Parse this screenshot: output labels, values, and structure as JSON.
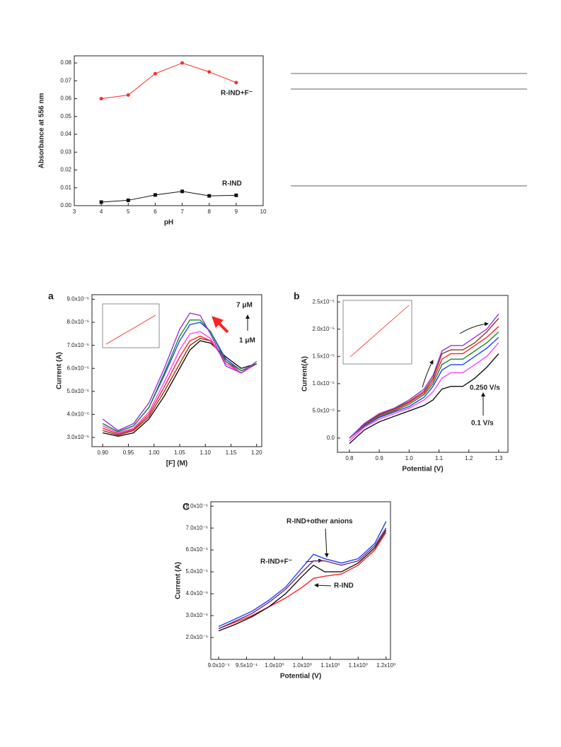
{
  "chart_data": [
    {
      "type": "line",
      "xlabel": "pH",
      "ylabel": "Absorbance at 556 nm",
      "markers": true,
      "x": [
        4,
        5,
        6,
        7,
        8,
        9
      ],
      "xlim": [
        3,
        10
      ],
      "xticks": [
        3,
        4,
        5,
        6,
        7,
        8,
        9,
        10
      ],
      "ylim": [
        0,
        0.084
      ],
      "yticks": [
        {
          "value": 0,
          "label": "0.00"
        },
        {
          "value": 0.01,
          "label": "0.01"
        },
        {
          "value": 0.02,
          "label": "0.02"
        },
        {
          "value": 0.03,
          "label": "0.03"
        },
        {
          "value": 0.04,
          "label": "0.04"
        },
        {
          "value": 0.05,
          "label": "0.05"
        },
        {
          "value": 0.06,
          "label": "0.06"
        },
        {
          "value": 0.07,
          "label": "0.07"
        },
        {
          "value": 0.08,
          "label": "0.08"
        }
      ],
      "series": [
        {
          "name": "R-IND+F⁻",
          "color": "#ff2a2a",
          "marker": "circle",
          "values": [
            0.06,
            0.062,
            0.074,
            0.08,
            0.075,
            0.069
          ]
        },
        {
          "name": "R-IND",
          "color": "#111111",
          "marker": "square",
          "values": [
            0.002,
            0.003,
            0.006,
            0.008,
            0.0055,
            0.0058
          ]
        }
      ]
    },
    {
      "type": "line",
      "panel": "a",
      "xlabel": "[F] (M)",
      "ylabel": "Current (A)",
      "markers": false,
      "annotations": [
        "7 μM",
        "1 μM"
      ],
      "x": [
        0.9,
        0.93,
        0.96,
        0.99,
        1.02,
        1.05,
        1.07,
        1.09,
        1.11,
        1.14,
        1.17,
        1.2
      ],
      "xlim": [
        0.879,
        1.21
      ],
      "xticks": [
        {
          "value": 0.9,
          "label": "0.90"
        },
        {
          "value": 0.95,
          "label": "0.95"
        },
        {
          "value": 1.0,
          "label": "1.00"
        },
        {
          "value": 1.05,
          "label": "1.05"
        },
        {
          "value": 1.1,
          "label": "1.10"
        },
        {
          "value": 1.15,
          "label": "1.15"
        },
        {
          "value": 1.2,
          "label": "1.20"
        }
      ],
      "ylim": [
        2.6e-06,
        9.2e-06
      ],
      "yticks": [
        {
          "value": 3e-06,
          "label": "3.0x10⁻⁶"
        },
        {
          "value": 4e-06,
          "label": "4.0x10⁻⁶"
        },
        {
          "value": 5e-06,
          "label": "5.0x10⁻⁶"
        },
        {
          "value": 6e-06,
          "label": "6.0x10⁻⁶"
        },
        {
          "value": 7e-06,
          "label": "7.0x10⁻⁶"
        },
        {
          "value": 8e-06,
          "label": "8.0x10⁻⁶"
        },
        {
          "value": 9e-06,
          "label": "9.0x10⁻⁶"
        }
      ],
      "series": [
        {
          "color": "#111111",
          "values": [
            3.2e-06,
            3.05e-06,
            3.2e-06,
            3.8e-06,
            4.8e-06,
            6e-06,
            6.8e-06,
            7.2e-06,
            7.1e-06,
            6.5e-06,
            6e-06,
            6.2e-06
          ]
        },
        {
          "color": "#8b3a1a",
          "values": [
            3.3e-06,
            3.1e-06,
            3.3e-06,
            3.9e-06,
            5e-06,
            6.2e-06,
            7e-06,
            7.3e-06,
            7.2e-06,
            6.4e-06,
            5.9e-06,
            6.2e-06
          ]
        },
        {
          "color": "#ff2020",
          "values": [
            3.4e-06,
            3.15e-06,
            3.35e-06,
            4e-06,
            5.2e-06,
            6.5e-06,
            7.2e-06,
            7.4e-06,
            7.2e-06,
            6.3e-06,
            5.8e-06,
            6.2e-06
          ]
        },
        {
          "color": "#ff40ff",
          "values": [
            3.5e-06,
            3.2e-06,
            3.4e-06,
            4.1e-06,
            5.4e-06,
            6.8e-06,
            7.5e-06,
            7.6e-06,
            7.3e-06,
            6.2e-06,
            5.8e-06,
            6.2e-06
          ]
        },
        {
          "color": "#2040ff",
          "values": [
            3.6e-06,
            3.25e-06,
            3.5e-06,
            4.3e-06,
            5.7e-06,
            7.2e-06,
            7.9e-06,
            8e-06,
            7.6e-06,
            6.4e-06,
            5.9e-06,
            6.2e-06
          ]
        },
        {
          "color": "#1a8a2a",
          "values": [
            3.6e-06,
            3.25e-06,
            3.5e-06,
            4.3e-06,
            5.8e-06,
            7.4e-06,
            8.1e-06,
            8.1e-06,
            7.6e-06,
            6.3e-06,
            5.9e-06,
            6.2e-06
          ]
        },
        {
          "color": "#9a30e0",
          "values": [
            3.8e-06,
            3.3e-06,
            3.6e-06,
            4.5e-06,
            6e-06,
            7.7e-06,
            8.4e-06,
            8.3e-06,
            7.5e-06,
            6.1e-06,
            5.8e-06,
            6.3e-06
          ]
        }
      ]
    },
    {
      "type": "line",
      "panel": "b",
      "xlabel": "Potential (V)",
      "ylabel": "Current(A)",
      "markers": false,
      "annotations": [
        "0.250 V/s",
        "0.1 V/s"
      ],
      "x": [
        0.8,
        0.85,
        0.9,
        0.95,
        1.0,
        1.05,
        1.08,
        1.11,
        1.14,
        1.18,
        1.22,
        1.26,
        1.3
      ],
      "xlim": [
        0.76,
        1.331
      ],
      "xticks": [
        0.8,
        0.9,
        {
          "value": 1.0,
          "label": "1.0"
        },
        1.1,
        1.2,
        1.3
      ],
      "ylim": [
        -2.6e-06,
        2.62e-05
      ],
      "yticks": [
        {
          "value": 0,
          "label": "0.0"
        },
        {
          "value": 5e-06,
          "label": "5.0x10⁻⁶"
        },
        {
          "value": 1e-05,
          "label": "1.0x10⁻⁵"
        },
        {
          "value": 1.5e-05,
          "label": "1.5x10⁻⁵"
        },
        {
          "value": 2e-05,
          "label": "2.0x10⁻⁵"
        },
        {
          "value": 2.5e-05,
          "label": "2.5x10⁻⁵"
        }
      ],
      "series": [
        {
          "color": "#111111",
          "values": [
            -1e-06,
            1.5e-06,
            3e-06,
            4e-06,
            5e-06,
            6e-06,
            7e-06,
            9e-06,
            9.5e-06,
            9.5e-06,
            1.1e-05,
            1.3e-05,
            1.55e-05
          ]
        },
        {
          "color": "#ff40ff",
          "values": [
            -5e-07,
            2e-06,
            3.5e-06,
            4.5e-06,
            5.5e-06,
            7e-06,
            8.5e-06,
            1.1e-05,
            1.2e-05,
            1.2e-05,
            1.35e-05,
            1.5e-05,
            1.75e-05
          ]
        },
        {
          "color": "#2040ff",
          "values": [
            0,
            2.2e-06,
            3.8e-06,
            4.8e-06,
            5.8e-06,
            7.5e-06,
            9.5e-06,
            1.25e-05,
            1.35e-05,
            1.35e-05,
            1.5e-05,
            1.65e-05,
            1.85e-05
          ]
        },
        {
          "color": "#1a8a2a",
          "values": [
            0,
            2.4e-06,
            4e-06,
            5e-06,
            6.2e-06,
            8e-06,
            1e-05,
            1.35e-05,
            1.45e-05,
            1.45e-05,
            1.6e-05,
            1.75e-05,
            1.95e-05
          ]
        },
        {
          "color": "#ff2020",
          "values": [
            0,
            2.5e-06,
            4.2e-06,
            5.2e-06,
            6.5e-06,
            8.3e-06,
            1.05e-05,
            1.45e-05,
            1.55e-05,
            1.55e-05,
            1.7e-05,
            1.85e-05,
            2.05e-05
          ]
        },
        {
          "color": "#8b3a1a",
          "values": [
            0,
            2.6e-06,
            4.3e-06,
            5.4e-06,
            6.7e-06,
            8.6e-06,
            1.1e-05,
            1.55e-05,
            1.62e-05,
            1.62e-05,
            1.75e-05,
            1.95e-05,
            2.2e-05
          ]
        },
        {
          "color": "#9a30e0",
          "values": [
            0,
            2.7e-06,
            4.5e-06,
            5.5e-06,
            7e-06,
            9e-06,
            1.15e-05,
            1.6e-05,
            1.7e-05,
            1.7e-05,
            1.85e-05,
            2e-05,
            2.28e-05
          ]
        }
      ]
    },
    {
      "type": "line",
      "panel": "C",
      "xlabel": "Potential (V)",
      "ylabel": "Current (A)",
      "markers": false,
      "annotations": [
        "R-IND+other anions",
        "R-IND+F⁻",
        "R-IND"
      ],
      "x": [
        0.9,
        0.93,
        0.96,
        0.99,
        1.02,
        1.05,
        1.07,
        1.09,
        1.12,
        1.15,
        1.18,
        1.2
      ],
      "xlim": [
        0.886,
        1.208
      ],
      "xticks": [
        {
          "value": 0.9,
          "label": "9.0x10⁻¹"
        },
        {
          "value": 0.95,
          "label": "9.5x10⁻¹"
        },
        {
          "value": 1.0,
          "label": "1.0x10⁰"
        },
        {
          "value": 1.05,
          "label": "1.0x10⁰"
        },
        {
          "value": 1.1,
          "label": "1.1x10⁰"
        },
        {
          "value": 1.15,
          "label": "1.1x10⁰"
        },
        {
          "value": 1.2,
          "label": "1.2x10⁰"
        }
      ],
      "ylim": [
        1e-06,
        8.2e-06
      ],
      "yticks": [
        {
          "value": 2e-06,
          "label": "2.0x10⁻⁶"
        },
        {
          "value": 3e-06,
          "label": "3.0x10⁻⁶"
        },
        {
          "value": 4e-06,
          "label": "4.0x10⁻⁶"
        },
        {
          "value": 5e-06,
          "label": "5.0x10⁻⁶"
        },
        {
          "value": 6e-06,
          "label": "6.0x10⁻⁶"
        },
        {
          "value": 7e-06,
          "label": "7.0x10⁻⁶"
        },
        {
          "value": 8e-06,
          "label": "8.0x10⁻⁶"
        }
      ],
      "series": [
        {
          "color": "#ff2020",
          "values": [
            2.4e-06,
            2.7e-06,
            3e-06,
            3.4e-06,
            3.8e-06,
            4.3e-06,
            4.7e-06,
            4.8e-06,
            4.9e-06,
            5.3e-06,
            6e-06,
            6.8e-06
          ]
        },
        {
          "color": "#111111",
          "values": [
            2.3e-06,
            2.6e-06,
            2.95e-06,
            3.4e-06,
            4e-06,
            4.8e-06,
            5.3e-06,
            5e-06,
            5e-06,
            5.4e-06,
            6.1e-06,
            6.9e-06
          ]
        },
        {
          "color": "#7a2a6a",
          "values": [
            2.4e-06,
            2.75e-06,
            3.1e-06,
            3.6e-06,
            4.2e-06,
            5e-06,
            5.5e-06,
            5.5e-06,
            5.3e-06,
            5.5e-06,
            6.2e-06,
            7e-06
          ]
        },
        {
          "color": "#2040ff",
          "values": [
            2.5e-06,
            2.85e-06,
            3.2e-06,
            3.7e-06,
            4.3e-06,
            5.2e-06,
            5.8e-06,
            5.6e-06,
            5.4e-06,
            5.6e-06,
            6.3e-06,
            7.3e-06
          ]
        }
      ]
    }
  ]
}
